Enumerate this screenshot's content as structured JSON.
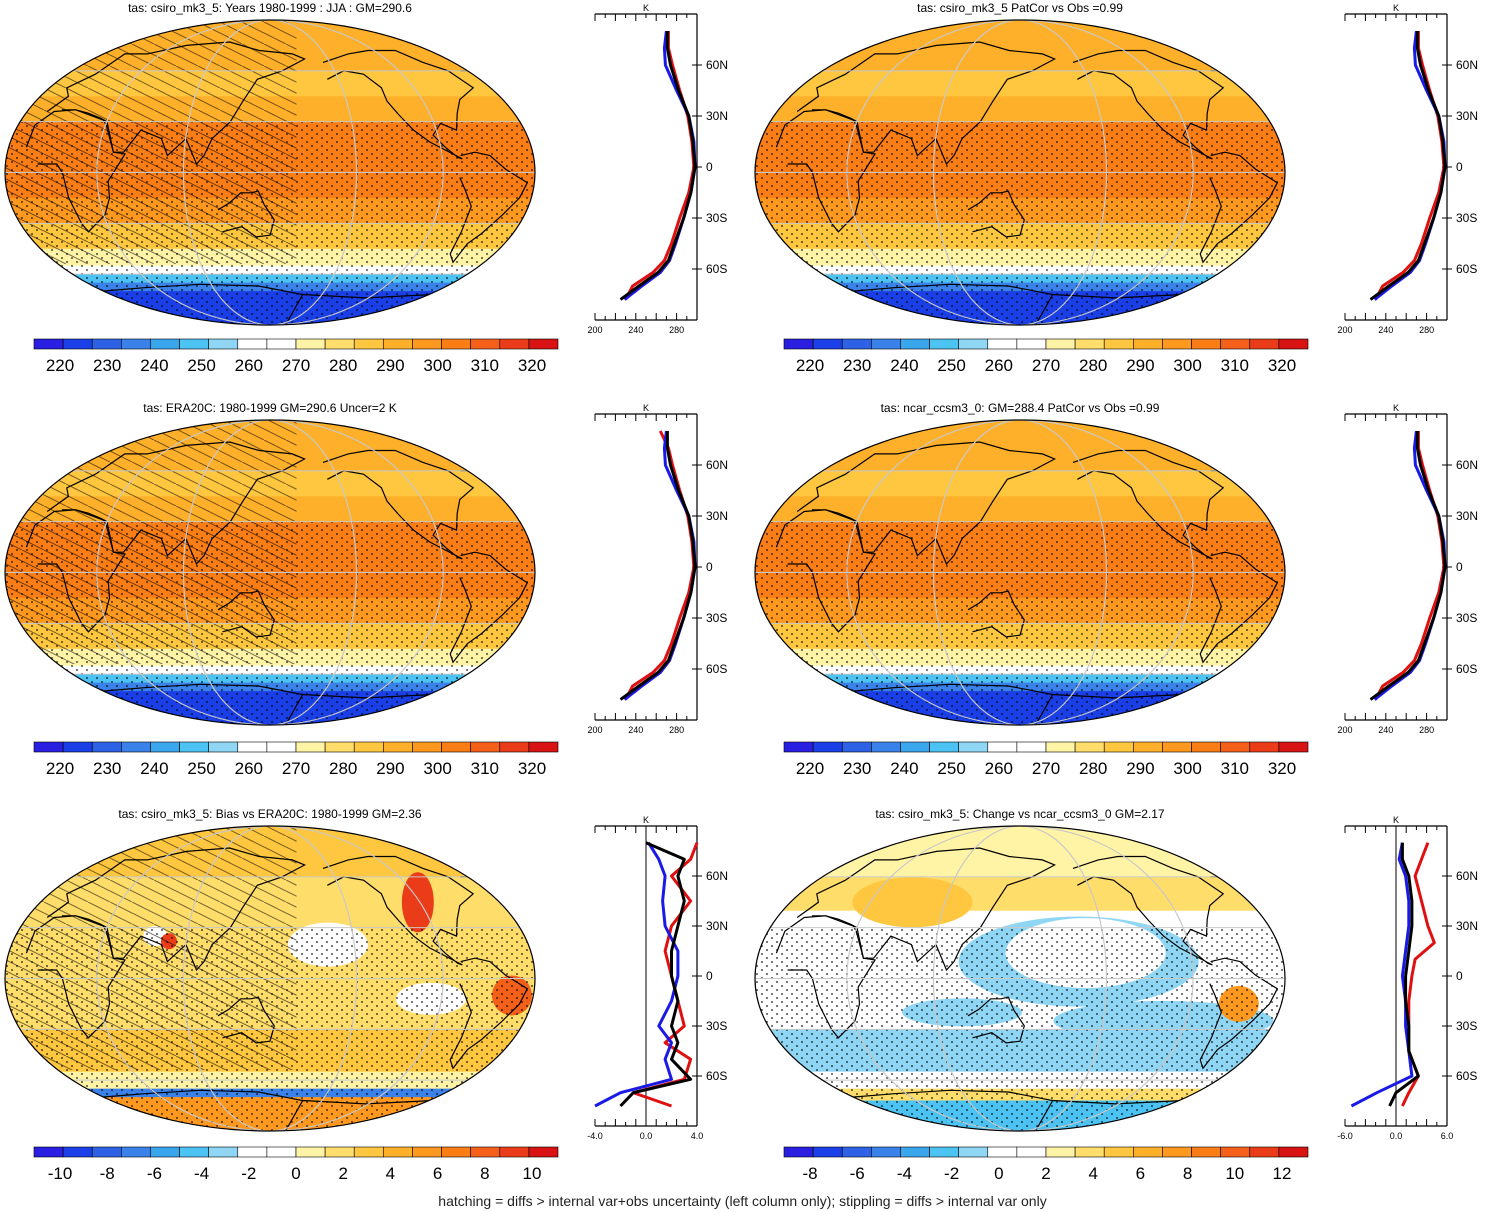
{
  "footer": "hatching = diffs > internal var+obs uncertainty (left column only); stippling = diffs > internal var only",
  "colors": {
    "abs": [
      "#2a1ee0",
      "#1b3fe6",
      "#2e62e6",
      "#3a82ea",
      "#39a6ee",
      "#4cc3f2",
      "#8fd6f4",
      "#ffffff",
      "#ffffff",
      "#fff3a6",
      "#ffdd6a",
      "#ffc740",
      "#ffb02a",
      "#ff981e",
      "#fb7d16",
      "#f4601a",
      "#ea3c19",
      "#d71314"
    ],
    "diff": [
      "#2a1ee0",
      "#1b3fe6",
      "#2e62e6",
      "#3a82ea",
      "#39a6ee",
      "#4cc3f2",
      "#8fd6f4",
      "#ffffff",
      "#ffffff",
      "#fff3a6",
      "#ffdd6a",
      "#ffc740",
      "#ffb02a",
      "#ff981e",
      "#fb7d16",
      "#f4601a",
      "#ea3c19",
      "#d71314"
    ],
    "model_line": "#e01010",
    "obs_line": "#1a1ae6",
    "other_line": "#000000",
    "land_outline": "#000000",
    "graticule": "#c8c8c8"
  },
  "chart_data": [
    {
      "type": "heatmap",
      "title": "tas: csiro_mk3_5: Years 1980-1999 : JJA : GM=290.6",
      "colorbar": {
        "labels": [
          "220",
          "230",
          "240",
          "250",
          "260",
          "270",
          "280",
          "290",
          "300",
          "310",
          "320"
        ],
        "range": [
          215,
          325
        ]
      },
      "profile": {
        "xlim": [
          200,
          300
        ],
        "x_ticks": [
          "200",
          "240",
          "280"
        ],
        "unit": "K",
        "lat_ticks": [
          "60N",
          "30N",
          "0",
          "30S",
          "60S"
        ],
        "series": [
          {
            "color": "red",
            "lat": [
              80,
              70,
              60,
              45,
              30,
              15,
              0,
              -15,
              -30,
              -45,
              -55,
              -62,
              -70,
              -78
            ],
            "values": [
              272,
              272,
              276,
              283,
              291,
              295,
              297,
              292,
              283,
              275,
              268,
              257,
              237,
              230
            ]
          },
          {
            "color": "blue",
            "lat": [
              80,
              70,
              60,
              45,
              30,
              15,
              0,
              -15,
              -30,
              -45,
              -55,
              -62,
              -70,
              -78
            ],
            "values": [
              270,
              268,
              269,
              280,
              292,
              297,
              298,
              294,
              287,
              279,
              273,
              264,
              246,
              229
            ]
          },
          {
            "color": "black",
            "lat": [
              80,
              70,
              60,
              45,
              30,
              15,
              0,
              -15,
              -30,
              -45,
              -55,
              -62,
              -70,
              -78
            ],
            "values": [
              271,
              271,
              274,
              282,
              292,
              296,
              298,
              294,
              287,
              278,
              272,
              262,
              243,
              225
            ]
          }
        ]
      }
    },
    {
      "type": "heatmap",
      "title": "tas: csiro_mk3_5 PatCor vs Obs =0.99",
      "colorbar": {
        "labels": [
          "220",
          "230",
          "240",
          "250",
          "260",
          "270",
          "280",
          "290",
          "300",
          "310",
          "320"
        ],
        "range": [
          215,
          325
        ]
      },
      "profile": {
        "xlim": [
          200,
          300
        ],
        "x_ticks": [
          "200",
          "240",
          "280"
        ],
        "unit": "K",
        "lat_ticks": [
          "60N",
          "30N",
          "0",
          "30S",
          "60S"
        ],
        "series": [
          {
            "color": "red",
            "lat": [
              80,
              70,
              60,
              45,
              30,
              15,
              0,
              -15,
              -30,
              -45,
              -55,
              -62,
              -70,
              -78
            ],
            "values": [
              272,
              272,
              276,
              283,
              291,
              295,
              297,
              292,
              283,
              275,
              268,
              257,
              237,
              230
            ]
          },
          {
            "color": "blue",
            "lat": [
              80,
              70,
              60,
              45,
              30,
              15,
              0,
              -15,
              -30,
              -45,
              -55,
              -62,
              -70,
              -78
            ],
            "values": [
              270,
              268,
              269,
              280,
              292,
              297,
              298,
              294,
              287,
              279,
              273,
              264,
              246,
              229
            ]
          },
          {
            "color": "black",
            "lat": [
              80,
              70,
              60,
              45,
              30,
              15,
              0,
              -15,
              -30,
              -45,
              -55,
              -62,
              -70,
              -78
            ],
            "values": [
              271,
              271,
              274,
              282,
              292,
              296,
              298,
              294,
              287,
              278,
              272,
              262,
              243,
              225
            ]
          }
        ]
      }
    },
    {
      "type": "heatmap",
      "title": "tas: ERA20C: 1980-1999 GM=290.6 Uncer=2 K",
      "colorbar": {
        "labels": [
          "220",
          "230",
          "240",
          "250",
          "260",
          "270",
          "280",
          "290",
          "300",
          "310",
          "320"
        ],
        "range": [
          215,
          325
        ]
      },
      "profile": {
        "xlim": [
          200,
          300
        ],
        "x_ticks": [
          "200",
          "240",
          "280"
        ],
        "unit": "K",
        "lat_ticks": [
          "60N",
          "30N",
          "0",
          "30S",
          "60S"
        ],
        "series": [
          {
            "color": "red",
            "lat": [
              80,
              70,
              60,
              45,
              30,
              15,
              0,
              -15,
              -30,
              -45,
              -55,
              -62,
              -70,
              -78
            ],
            "values": [
              264,
              272,
              276,
              283,
              291,
              295,
              297,
              292,
              283,
              275,
              268,
              257,
              237,
              230
            ]
          },
          {
            "color": "blue",
            "lat": [
              80,
              70,
              60,
              45,
              30,
              15,
              0,
              -15,
              -30,
              -45,
              -55,
              -62,
              -70,
              -78
            ],
            "values": [
              270,
              268,
              269,
              280,
              292,
              297,
              298,
              294,
              287,
              279,
              273,
              264,
              246,
              229
            ]
          },
          {
            "color": "black",
            "lat": [
              80,
              70,
              60,
              45,
              30,
              15,
              0,
              -15,
              -30,
              -45,
              -55,
              -62,
              -70,
              -78
            ],
            "values": [
              271,
              271,
              274,
              282,
              292,
              296,
              298,
              294,
              287,
              278,
              272,
              262,
              243,
              225
            ]
          }
        ]
      }
    },
    {
      "type": "heatmap",
      "title": "tas: ncar_ccsm3_0: GM=288.4 PatCor vs Obs =0.99",
      "colorbar": {
        "labels": [
          "220",
          "230",
          "240",
          "250",
          "260",
          "270",
          "280",
          "290",
          "300",
          "310",
          "320"
        ],
        "range": [
          215,
          325
        ]
      },
      "profile": {
        "xlim": [
          200,
          300
        ],
        "x_ticks": [
          "200",
          "240",
          "280"
        ],
        "unit": "K",
        "lat_ticks": [
          "60N",
          "30N",
          "0",
          "30S",
          "60S"
        ],
        "series": [
          {
            "color": "red",
            "lat": [
              80,
              70,
              60,
              45,
              30,
              15,
              0,
              -15,
              -30,
              -45,
              -55,
              -62,
              -70,
              -78
            ],
            "values": [
              272,
              272,
              276,
              283,
              291,
              295,
              297,
              292,
              283,
              275,
              268,
              257,
              237,
              230
            ]
          },
          {
            "color": "blue",
            "lat": [
              80,
              70,
              60,
              45,
              30,
              15,
              0,
              -15,
              -30,
              -45,
              -55,
              -62,
              -70,
              -78
            ],
            "values": [
              270,
              268,
              269,
              280,
              292,
              297,
              298,
              294,
              287,
              279,
              273,
              264,
              246,
              229
            ]
          },
          {
            "color": "black",
            "lat": [
              80,
              70,
              60,
              45,
              30,
              15,
              0,
              -15,
              -30,
              -45,
              -55,
              -62,
              -70,
              -78
            ],
            "values": [
              271,
              271,
              274,
              282,
              292,
              296,
              298,
              294,
              287,
              278,
              272,
              262,
              243,
              225
            ]
          }
        ]
      }
    },
    {
      "type": "heatmap",
      "title": "tas: csiro_mk3_5: Bias vs ERA20C: 1980-1999 GM=2.36",
      "colorbar": {
        "labels": [
          "-10",
          "-8",
          "-6",
          "-4",
          "-2",
          "0",
          "2",
          "4",
          "6",
          "8",
          "10"
        ],
        "range": [
          -11,
          11
        ]
      },
      "profile": {
        "xlim": [
          -4,
          4
        ],
        "x_ticks": [
          "-4.0",
          "0.0",
          "4.0"
        ],
        "unit": "K",
        "lat_ticks": [
          "60N",
          "30N",
          "0",
          "30S",
          "60S"
        ],
        "series": [
          {
            "color": "red",
            "lat": [
              80,
              70,
              60,
              45,
              30,
              15,
              0,
              -15,
              -30,
              -40,
              -50,
              -62,
              -70,
              -78
            ],
            "values": [
              4,
              3.5,
              2,
              3.5,
              2,
              1.5,
              2,
              2.5,
              3,
              1.5,
              3.5,
              3,
              -1,
              2
            ]
          },
          {
            "color": "blue",
            "lat": [
              80,
              70,
              60,
              45,
              30,
              15,
              0,
              -15,
              -30,
              -40,
              -50,
              -62,
              -70,
              -78
            ],
            "values": [
              0.2,
              1,
              1.5,
              1.3,
              1.5,
              2.5,
              2.5,
              2,
              1,
              2,
              1.5,
              2,
              -2,
              -4
            ]
          },
          {
            "color": "black",
            "lat": [
              80,
              70,
              60,
              45,
              30,
              15,
              0,
              -15,
              -30,
              -40,
              -50,
              -62,
              -70,
              -78
            ],
            "values": [
              0,
              3,
              2.5,
              3,
              2.5,
              2,
              2,
              2.5,
              2,
              2.5,
              2,
              3.5,
              -1,
              -2
            ]
          }
        ]
      }
    },
    {
      "type": "heatmap",
      "title": "tas: csiro_mk3_5: Change vs ncar_ccsm3_0 GM=2.17",
      "colorbar": {
        "labels": [
          "-8",
          "-6",
          "-4",
          "-2",
          "0",
          "2",
          "4",
          "6",
          "8",
          "10",
          "12"
        ],
        "range": [
          -9,
          13
        ]
      },
      "profile": {
        "xlim": [
          -8,
          8
        ],
        "x_ticks": [
          "-6.0",
          "0.0",
          "6.0"
        ],
        "unit": "K",
        "lat_ticks": [
          "60N",
          "30N",
          "0",
          "30S",
          "60S"
        ],
        "series": [
          {
            "color": "red",
            "lat": [
              80,
              70,
              60,
              45,
              30,
              20,
              10,
              0,
              -15,
              -30,
              -45,
              -60,
              -70,
              -78
            ],
            "values": [
              5,
              4,
              3,
              4,
              5,
              6,
              3,
              2.5,
              2,
              2,
              2,
              3.5,
              2,
              1
            ]
          },
          {
            "color": "blue",
            "lat": [
              80,
              70,
              60,
              45,
              30,
              15,
              0,
              -15,
              -30,
              -45,
              -60,
              -70,
              -78
            ],
            "values": [
              1,
              0.5,
              1.5,
              2,
              2,
              1.5,
              1,
              1.5,
              1.5,
              2,
              2.5,
              -3,
              -7
            ]
          },
          {
            "color": "black",
            "lat": [
              80,
              70,
              60,
              45,
              30,
              15,
              0,
              -15,
              -30,
              -45,
              -60,
              -70,
              -78
            ],
            "values": [
              1,
              1,
              2,
              2.5,
              2.5,
              2,
              1.5,
              1.5,
              2,
              2,
              3.5,
              0,
              -1
            ]
          }
        ]
      }
    }
  ]
}
